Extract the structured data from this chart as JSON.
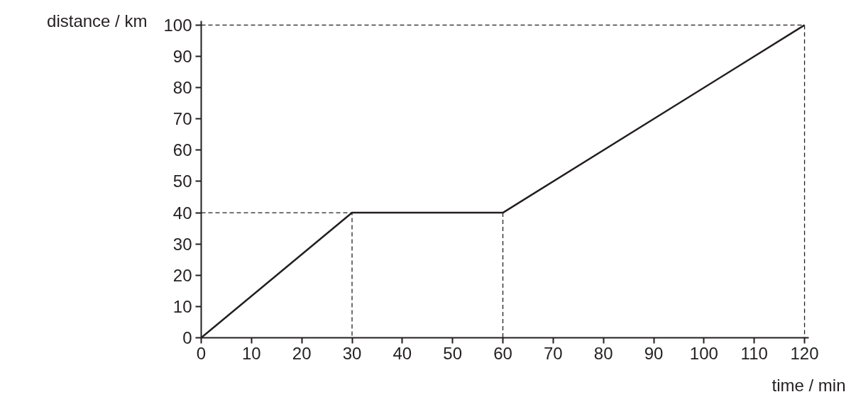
{
  "chart_data": {
    "type": "line",
    "xlabel": "time / min",
    "ylabel": "distance / km",
    "x": [
      0,
      30,
      60,
      120
    ],
    "series": [
      {
        "color": "#231f20",
        "values": [
          0,
          40,
          40,
          100
        ],
        "line_style": "solid"
      },
      {
        "type": "line",
        "x": [
          0,
          30,
          30
        ],
        "color": "#231f20",
        "values": [
          40,
          40,
          0
        ],
        "line_style": "dashed"
      },
      {
        "type": "line",
        "x": [
          60,
          60
        ],
        "color": "#231f20",
        "values": [
          40,
          0
        ],
        "line_style": "dashed"
      },
      {
        "type": "line",
        "x": [
          0,
          120
        ],
        "color": "#231f20",
        "values": [
          100,
          100
        ],
        "line_style": "dashed"
      },
      {
        "type": "line",
        "x": [
          120,
          120
        ],
        "color": "#231f20",
        "values": [
          100,
          0
        ],
        "line_style": "dashed"
      }
    ],
    "xlim": [
      0,
      120
    ],
    "xticks": [
      0,
      10,
      20,
      30,
      40,
      50,
      60,
      70,
      80,
      90,
      100,
      110,
      120
    ],
    "ylim": [
      0,
      100
    ],
    "yticks": [
      0,
      10,
      20,
      30,
      40,
      50,
      60,
      70,
      80,
      90,
      100
    ],
    "grid": false,
    "marker": "none"
  }
}
